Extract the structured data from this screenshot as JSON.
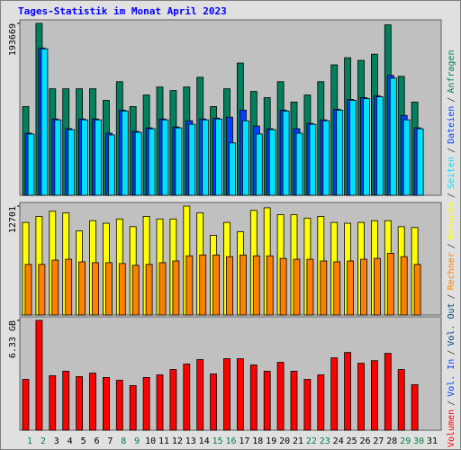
{
  "separator": "/",
  "chart_data": [
    {
      "type": "bar",
      "title": "Tages-Statistik im Monat April 2023",
      "ylim": [
        0,
        193669
      ],
      "yticks": [
        193669
      ],
      "series": [
        {
          "name": "Anfragen",
          "color": "#00805c",
          "values": [
            100000,
            193669,
            120000,
            120000,
            120000,
            120000,
            107000,
            128000,
            100000,
            113000,
            122000,
            118000,
            122000,
            133000,
            100000,
            120000,
            149000,
            117000,
            110000,
            128000,
            105000,
            113000,
            128000,
            147000,
            155000,
            152000,
            159000,
            192000,
            134000,
            105000,
            null
          ]
        },
        {
          "name": "Dateien",
          "color": "#0040ff",
          "values": [
            70000,
            166000,
            86000,
            75000,
            86000,
            86000,
            70000,
            96000,
            72000,
            76000,
            86000,
            77000,
            84000,
            86000,
            87000,
            88000,
            96000,
            78000,
            75000,
            96000,
            75000,
            81000,
            85000,
            97000,
            108000,
            110000,
            112000,
            135000,
            90000,
            76000,
            null
          ]
        },
        {
          "name": "Seiten",
          "color": "#00e0ff",
          "values": [
            69000,
            165000,
            85000,
            74000,
            85000,
            85000,
            68000,
            95000,
            71000,
            75000,
            85000,
            76000,
            80000,
            85000,
            86000,
            59000,
            84000,
            69000,
            74000,
            95000,
            70000,
            80000,
            84000,
            96000,
            107000,
            109000,
            111000,
            132000,
            85000,
            75000,
            null
          ]
        }
      ]
    },
    {
      "type": "bar",
      "ylim": [
        0,
        12701
      ],
      "yticks": [
        12701
      ],
      "series": [
        {
          "name": "Besuche",
          "color": "#ffff00",
          "values": [
            10800,
            11500,
            12100,
            11900,
            9800,
            11000,
            10700,
            11200,
            10300,
            11500,
            11200,
            11200,
            12701,
            11900,
            9300,
            10800,
            9700,
            12200,
            12500,
            11700,
            11700,
            11300,
            11500,
            10800,
            10700,
            10800,
            11000,
            11000,
            10300,
            10200,
            null
          ]
        },
        {
          "name": "Rechner",
          "color": "#ff8000",
          "values": [
            5900,
            5900,
            6400,
            6500,
            6200,
            6100,
            6100,
            6000,
            5800,
            5900,
            6100,
            6300,
            6900,
            7000,
            7000,
            6800,
            7000,
            6900,
            6900,
            6600,
            6500,
            6500,
            6300,
            6200,
            6300,
            6500,
            6600,
            7200,
            6800,
            5900,
            null
          ]
        }
      ]
    },
    {
      "type": "bar",
      "ylim": [
        0,
        6.33
      ],
      "yticks": [
        {
          "value": 6.33,
          "label": "6.33 GB"
        }
      ],
      "categories": [
        "1",
        "2",
        "3",
        "4",
        "5",
        "6",
        "7",
        "8",
        "9",
        "10",
        "11",
        "12",
        "13",
        "14",
        "15",
        "16",
        "17",
        "18",
        "19",
        "20",
        "21",
        "22",
        "23",
        "24",
        "25",
        "26",
        "27",
        "28",
        "29",
        "30",
        "31"
      ],
      "category_label_colors": [
        "#008040",
        "#008040",
        "#000000",
        "#000000",
        "#000000",
        "#000000",
        "#000000",
        "#008040",
        "#008040",
        "#000000",
        "#000000",
        "#000000",
        "#000000",
        "#000000",
        "#008040",
        "#008040",
        "#000000",
        "#000000",
        "#000000",
        "#000000",
        "#000000",
        "#008040",
        "#008040",
        "#000000",
        "#000000",
        "#000000",
        "#000000",
        "#000000",
        "#008040",
        "#008040",
        "#000000"
      ],
      "series": [
        {
          "name": "Volumen",
          "color": "#ff0000",
          "values": [
            2.93,
            6.33,
            3.14,
            3.4,
            3.09,
            3.29,
            3.04,
            2.88,
            2.57,
            3.04,
            3.19,
            3.5,
            3.81,
            4.07,
            3.24,
            4.12,
            4.12,
            3.76,
            3.4,
            3.91,
            3.4,
            2.93,
            3.19,
            4.17,
            4.48,
            3.86,
            4.01,
            4.43,
            3.5,
            2.62,
            null
          ]
        },
        {
          "name": "Vol. In",
          "color": "#0040ff",
          "values": [
            null,
            null,
            null,
            null,
            null,
            null,
            null,
            null,
            null,
            null,
            null,
            null,
            null,
            null,
            null,
            null,
            null,
            null,
            null,
            null,
            null,
            null,
            null,
            null,
            null,
            null,
            null,
            null,
            null,
            null,
            null
          ]
        },
        {
          "name": "Vol. Out",
          "color": "#004080",
          "values": [
            null,
            null,
            null,
            null,
            null,
            null,
            null,
            null,
            null,
            null,
            null,
            null,
            null,
            null,
            null,
            null,
            null,
            null,
            null,
            null,
            null,
            null,
            null,
            null,
            null,
            null,
            null,
            null,
            null,
            null,
            null
          ]
        }
      ]
    }
  ]
}
